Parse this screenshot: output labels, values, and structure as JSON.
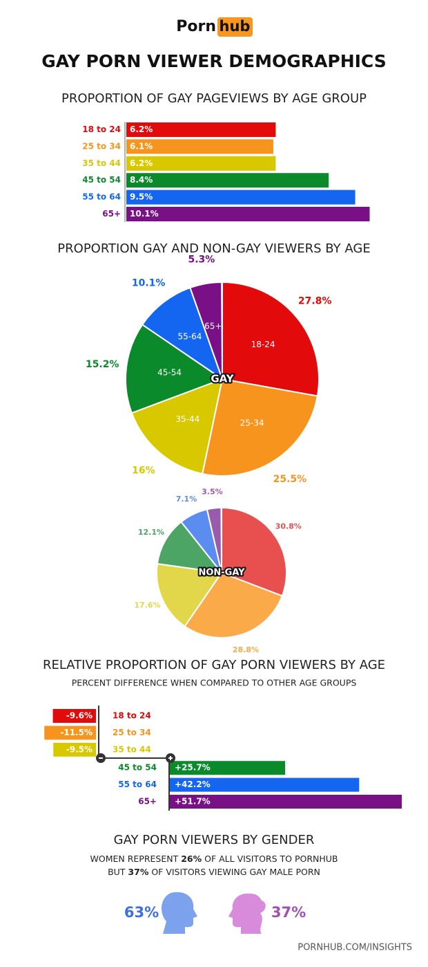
{
  "header": {
    "logo_left": "Porn",
    "logo_right": "hub",
    "title": "GAY PORN VIEWER DEMOGRAPHICS"
  },
  "chart_data": [
    {
      "type": "bar",
      "title": "PROPORTION OF GAY PAGEVIEWS BY AGE GROUP",
      "categories": [
        "18 to 24",
        "25 to 34",
        "35 to 44",
        "45 to 54",
        "55 to 64",
        "65+"
      ],
      "values": [
        6.2,
        6.1,
        6.2,
        8.4,
        9.5,
        10.1
      ],
      "value_labels": [
        "6.2%",
        "6.1%",
        "6.2%",
        "8.4%",
        "9.5%",
        "10.1%"
      ],
      "colors": [
        "#e20a0a",
        "#f7941d",
        "#d8c800",
        "#0b8a2c",
        "#1466f0",
        "#7a1086"
      ]
    },
    {
      "type": "pie",
      "title": "PROPORTION GAY AND NON-GAY VIEWERS BY AGE",
      "center_label": "GAY",
      "categories": [
        "18-24",
        "25-34",
        "35-44",
        "45-54",
        "55-64",
        "65+"
      ],
      "values": [
        27.8,
        25.5,
        16,
        15.2,
        10.1,
        5.3
      ],
      "value_labels": [
        "27.8%",
        "25.5%",
        "16%",
        "15.2%",
        "10.1%",
        "5.3%"
      ],
      "colors": [
        "#e20a0a",
        "#f7941d",
        "#d8c800",
        "#0b8a2c",
        "#1466f0",
        "#7a1086"
      ]
    },
    {
      "type": "pie",
      "center_label": "NON-GAY",
      "values": [
        30.8,
        28.8,
        17.6,
        12.1,
        7.1,
        3.5
      ],
      "value_labels": [
        "30.8%",
        "28.8%",
        "17.6%",
        "12.1%",
        "7.1%",
        "3.5%"
      ],
      "colors": [
        "#e8504f",
        "#fbaa4a",
        "#e2d74b",
        "#4ca564",
        "#5b8cef",
        "#9a5aae"
      ]
    },
    {
      "type": "diverging_bar",
      "title": "RELATIVE PROPORTION OF GAY PORN VIEWERS BY AGE",
      "subtitle": "PERCENT DIFFERENCE WHEN COMPARED TO OTHER AGE GROUPS",
      "categories": [
        "18 to 24",
        "25 to 34",
        "35 to 44",
        "45 to 54",
        "55 to 64",
        "65+"
      ],
      "values": [
        -9.6,
        -11.5,
        -9.5,
        25.7,
        42.2,
        51.7
      ],
      "value_labels": [
        "-9.6%",
        "-11.5%",
        "-9.5%",
        "+25.7%",
        "+42.2%",
        "+51.7%"
      ],
      "colors": [
        "#e20a0a",
        "#f7941d",
        "#d8c800",
        "#0b8a2c",
        "#1466f0",
        "#7a1086"
      ]
    },
    {
      "type": "pictogram",
      "title": "GAY PORN VIEWERS BY GENDER",
      "description": [
        [
          "WOMEN REPRESENT ",
          "26%",
          " OF ALL VISITORS TO PORNHUB"
        ],
        [
          "BUT ",
          "37%",
          " OF VISITORS VIEWING GAY MALE PORN"
        ]
      ],
      "values": [
        63,
        37
      ],
      "value_labels": [
        "63%",
        "37%"
      ],
      "colors": [
        "#7ca2ee",
        "#d78bda"
      ],
      "label_colors": [
        "#3d6fe0",
        "#a150b2"
      ]
    }
  ],
  "footer": "PORNHUB.COM/INSIGHTS"
}
